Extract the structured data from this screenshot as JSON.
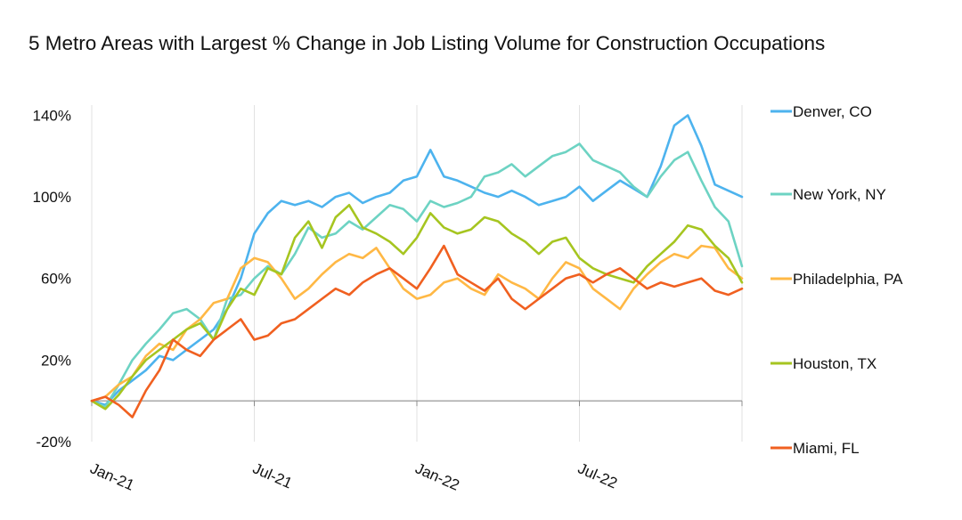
{
  "chart_data": {
    "type": "line",
    "title": "5 Metro Areas with Largest % Change in Job Listing Volume for Construction Occupations",
    "xlabel": "",
    "ylabel": "",
    "x_ticks": [
      "Jan-21",
      "Jul-21",
      "Jan-22",
      "Jul-22"
    ],
    "y_ticks": [
      "140%",
      "100%",
      "60%",
      "20%",
      "-20%"
    ],
    "ylim": [
      -20,
      145
    ],
    "x_unit": "months since Jan-21",
    "grid": "vertical",
    "legend_position": "right",
    "series": [
      {
        "name": "Denver, CO",
        "color": "#4DB3EE",
        "x": [
          0,
          0.5,
          1,
          1.5,
          2,
          2.5,
          3,
          3.5,
          4,
          4.5,
          5,
          5.5,
          6,
          6.5,
          7,
          7.5,
          8,
          8.5,
          9,
          9.5,
          10,
          10.5,
          11,
          11.5,
          12,
          12.5,
          13,
          13.5,
          14,
          14.5,
          15,
          15.5,
          16,
          16.5,
          17,
          17.5,
          18,
          18.5,
          19,
          19.5,
          20,
          20.5,
          21,
          21.5,
          22,
          22.5,
          23,
          23.5,
          24
        ],
        "values": [
          0,
          -2,
          5,
          10,
          15,
          22,
          20,
          25,
          30,
          35,
          45,
          60,
          82,
          92,
          98,
          96,
          98,
          95,
          100,
          102,
          97,
          100,
          102,
          108,
          110,
          123,
          110,
          108,
          105,
          102,
          100,
          103,
          100,
          96,
          98,
          100,
          105,
          98,
          103,
          108,
          104,
          100,
          115,
          135,
          140,
          125,
          106,
          103,
          100
        ]
      },
      {
        "name": "New York, NY",
        "color": "#6DD3C3",
        "x": [
          0,
          0.5,
          1,
          1.5,
          2,
          2.5,
          3,
          3.5,
          4,
          4.5,
          5,
          5.5,
          6,
          6.5,
          7,
          7.5,
          8,
          8.5,
          9,
          9.5,
          10,
          10.5,
          11,
          11.5,
          12,
          12.5,
          13,
          13.5,
          14,
          14.5,
          15,
          15.5,
          16,
          16.5,
          17,
          17.5,
          18,
          18.5,
          19,
          19.5,
          20,
          20.5,
          21,
          21.5,
          22,
          22.5,
          23,
          23.5,
          24
        ],
        "values": [
          0,
          -3,
          8,
          20,
          28,
          35,
          43,
          45,
          40,
          30,
          50,
          52,
          60,
          66,
          62,
          72,
          85,
          80,
          82,
          88,
          84,
          90,
          96,
          94,
          88,
          98,
          95,
          97,
          100,
          110,
          112,
          116,
          110,
          115,
          120,
          122,
          126,
          118,
          115,
          112,
          105,
          100,
          110,
          118,
          122,
          108,
          95,
          88,
          66
        ]
      },
      {
        "name": "Philadelphia, PA",
        "color": "#FFB845",
        "x": [
          0,
          0.5,
          1,
          1.5,
          2,
          2.5,
          3,
          3.5,
          4,
          4.5,
          5,
          5.5,
          6,
          6.5,
          7,
          7.5,
          8,
          8.5,
          9,
          9.5,
          10,
          10.5,
          11,
          11.5,
          12,
          12.5,
          13,
          13.5,
          14,
          14.5,
          15,
          15.5,
          16,
          16.5,
          17,
          17.5,
          18,
          18.5,
          19,
          19.5,
          20,
          20.5,
          21,
          21.5,
          22,
          22.5,
          23,
          23.5,
          24
        ],
        "values": [
          0,
          2,
          8,
          12,
          22,
          28,
          25,
          35,
          40,
          48,
          50,
          65,
          70,
          68,
          60,
          50,
          55,
          62,
          68,
          72,
          70,
          75,
          65,
          55,
          50,
          52,
          58,
          60,
          55,
          52,
          62,
          58,
          55,
          50,
          60,
          68,
          65,
          55,
          50,
          45,
          55,
          62,
          68,
          72,
          70,
          76,
          75,
          65,
          60
        ]
      },
      {
        "name": "Houston, TX",
        "color": "#A6C520",
        "x": [
          0,
          0.5,
          1,
          1.5,
          2,
          2.5,
          3,
          3.5,
          4,
          4.5,
          5,
          5.5,
          6,
          6.5,
          7,
          7.5,
          8,
          8.5,
          9,
          9.5,
          10,
          10.5,
          11,
          11.5,
          12,
          12.5,
          13,
          13.5,
          14,
          14.5,
          15,
          15.5,
          16,
          16.5,
          17,
          17.5,
          18,
          18.5,
          19,
          19.5,
          20,
          20.5,
          21,
          21.5,
          22,
          22.5,
          23,
          23.5,
          24
        ],
        "values": [
          0,
          -4,
          3,
          12,
          20,
          25,
          30,
          35,
          38,
          30,
          45,
          55,
          52,
          65,
          62,
          80,
          88,
          75,
          90,
          96,
          85,
          82,
          78,
          72,
          80,
          92,
          85,
          82,
          84,
          90,
          88,
          82,
          78,
          72,
          78,
          80,
          70,
          65,
          62,
          60,
          58,
          66,
          72,
          78,
          86,
          84,
          76,
          70,
          58
        ]
      },
      {
        "name": "Miami, FL",
        "color": "#F06020",
        "x": [
          0,
          0.5,
          1,
          1.5,
          2,
          2.5,
          3,
          3.5,
          4,
          4.5,
          5,
          5.5,
          6,
          6.5,
          7,
          7.5,
          8,
          8.5,
          9,
          9.5,
          10,
          10.5,
          11,
          11.5,
          12,
          12.5,
          13,
          13.5,
          14,
          14.5,
          15,
          15.5,
          16,
          16.5,
          17,
          17.5,
          18,
          18.5,
          19,
          19.5,
          20,
          20.5,
          21,
          21.5,
          22,
          22.5,
          23,
          23.5,
          24
        ],
        "values": [
          0,
          2,
          -2,
          -8,
          5,
          15,
          30,
          25,
          22,
          30,
          35,
          40,
          30,
          32,
          38,
          40,
          45,
          50,
          55,
          52,
          58,
          62,
          65,
          60,
          55,
          65,
          76,
          62,
          58,
          54,
          60,
          50,
          45,
          50,
          55,
          60,
          62,
          58,
          62,
          65,
          60,
          55,
          58,
          56,
          58,
          60,
          54,
          52,
          55
        ]
      }
    ]
  }
}
